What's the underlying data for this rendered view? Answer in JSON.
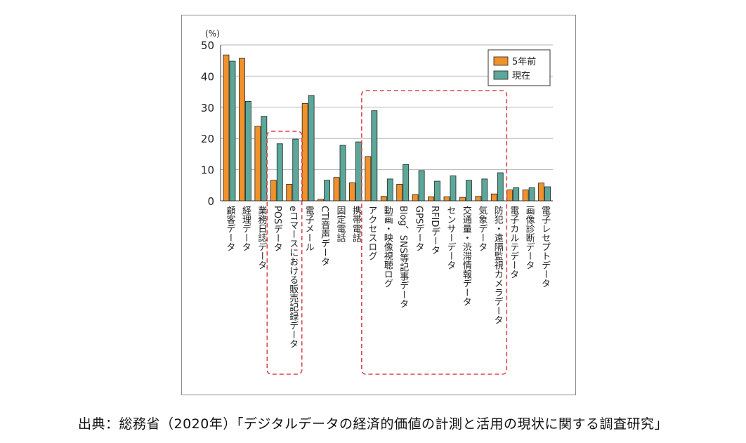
{
  "chart_data": {
    "type": "bar",
    "ylabel": "(%)",
    "ylim": [
      0,
      50
    ],
    "yticks": [
      0,
      10,
      20,
      30,
      40,
      50
    ],
    "grid": true,
    "legend_position": "top-right",
    "categories": [
      "顧客データ",
      "経理データ",
      "業務日誌データ",
      "POSデータ",
      "eコマースにおける販売記録データ",
      "電子メール",
      "CTI音声データ",
      "固定電話",
      "携帯電話",
      "アクセスログ",
      "動画・映像視聴ログ",
      "Blog、SNS等記事データ",
      "GPSデータ",
      "RFIDデータ",
      "センサーデータ",
      "交通量・渋滞情報データ",
      "気象データ",
      "防犯・遠隔監視カメラデータ",
      "電子カルテデータ",
      "画像診断データ",
      "電子レセプトデータ"
    ],
    "series": [
      {
        "name": "5年前",
        "color": "#f0922b",
        "values": [
          46.8,
          45.7,
          23.9,
          6.6,
          5.3,
          31.2,
          0.5,
          7.5,
          5.8,
          14.2,
          1.4,
          5.3,
          2.0,
          1.3,
          1.3,
          1.1,
          1.4,
          2.2,
          3.5,
          3.5,
          5.7
        ]
      },
      {
        "name": "現在",
        "color": "#5ba89a",
        "values": [
          44.8,
          31.9,
          27.1,
          18.3,
          19.8,
          33.8,
          6.6,
          17.8,
          18.9,
          28.9,
          7.0,
          11.6,
          9.7,
          6.3,
          8.0,
          6.6,
          7.0,
          9.0,
          4.2,
          4.2,
          4.5
        ]
      }
    ],
    "highlight_groups": [
      [
        3,
        4
      ],
      [
        9,
        17
      ]
    ]
  },
  "source": "出典：総務省（2020年）「デジタルデータの経済的価値の計測と活用の現状に関する調査研究」"
}
